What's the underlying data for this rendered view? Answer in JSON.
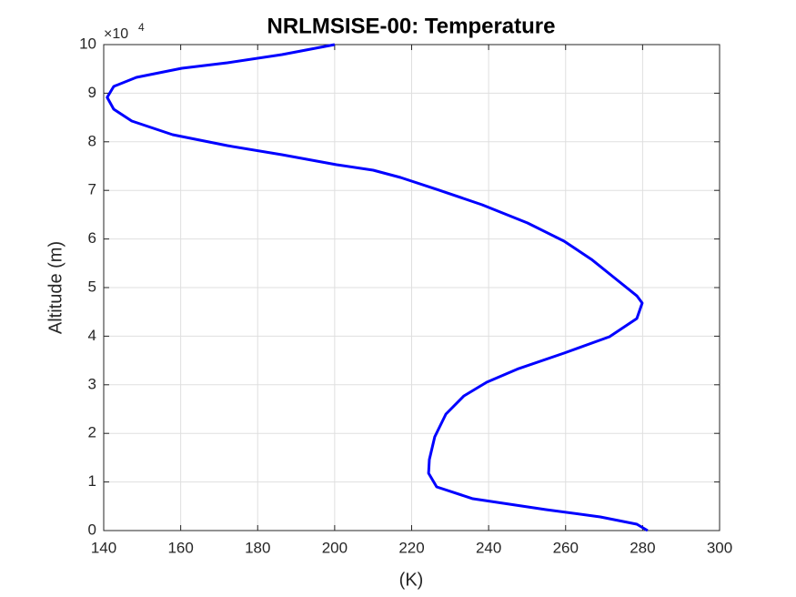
{
  "chart_data": {
    "type": "line",
    "title": "NRLMSISE-00: Temperature",
    "x_label": "(K)",
    "y_label": "Altitude (m)",
    "y_exponent_base": "×10",
    "y_exponent": "4",
    "x": [
      200,
      186.3,
      172.1,
      160.3,
      148.5,
      142.6,
      140.9,
      142.6,
      147.3,
      157.9,
      172.1,
      186.3,
      200.5,
      210,
      217.1,
      226.5,
      238.3,
      250.1,
      259.6,
      266.7,
      272.6,
      278.5,
      279.9,
      278.5,
      271.4,
      259.6,
      247.8,
      239.5,
      233.6,
      228.9,
      226,
      224.6,
      224.4,
      226.5,
      235.9,
      254.9,
      269,
      278.5,
      281.3
    ],
    "series": [
      {
        "name": "Temperature",
        "color": "#0000ff",
        "values": [
          100000,
          97940,
          96250,
          95130,
          93260,
          91390,
          89140,
          86700,
          84270,
          81460,
          79210,
          77340,
          75280,
          74160,
          72660,
          70220,
          67040,
          63300,
          59550,
          55810,
          52060,
          48310,
          46820,
          43630,
          39890,
          36520,
          33330,
          30520,
          27720,
          23970,
          19290,
          14610,
          11800,
          8990,
          6550,
          4310,
          2810,
          1310,
          0
        ]
      }
    ],
    "xlim": [
      140,
      300
    ],
    "xticks": [
      140,
      160,
      180,
      200,
      220,
      240,
      260,
      280,
      300
    ],
    "ylim": [
      0,
      100000
    ],
    "yticks": [
      {
        "value": 0,
        "label": "0"
      },
      {
        "value": 10000,
        "label": "1"
      },
      {
        "value": 20000,
        "label": "2"
      },
      {
        "value": 30000,
        "label": "3"
      },
      {
        "value": 40000,
        "label": "4"
      },
      {
        "value": 50000,
        "label": "5"
      },
      {
        "value": 60000,
        "label": "6"
      },
      {
        "value": 70000,
        "label": "7"
      },
      {
        "value": 80000,
        "label": "8"
      },
      {
        "value": 90000,
        "label": "9"
      },
      {
        "value": 100000,
        "label": "10"
      }
    ],
    "grid": true
  }
}
